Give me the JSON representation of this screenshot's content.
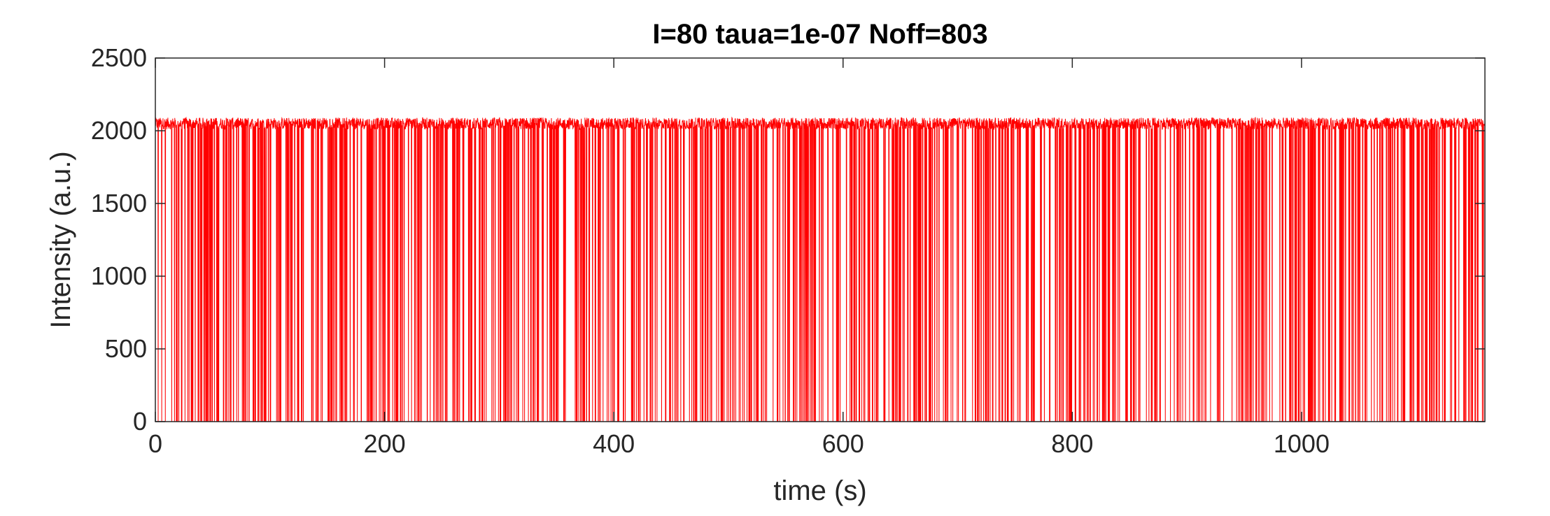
{
  "chart_data": {
    "type": "line",
    "title": "I=80 taua=1e-07 Noff=803",
    "xlabel": "time (s)",
    "ylabel": "Intensity (a.u.)",
    "xlim": [
      0,
      1160
    ],
    "ylim": [
      0,
      2500
    ],
    "xticks": [
      0,
      200,
      400,
      600,
      800,
      1000
    ],
    "yticks": [
      0,
      500,
      1000,
      1500,
      2000,
      2500
    ],
    "grid": false,
    "legend": "none",
    "series": [
      {
        "color": "#ff0000",
        "on_level": 2050,
        "on_level_noise": 40,
        "off_level": 0,
        "off_events": 803
      }
    ]
  }
}
